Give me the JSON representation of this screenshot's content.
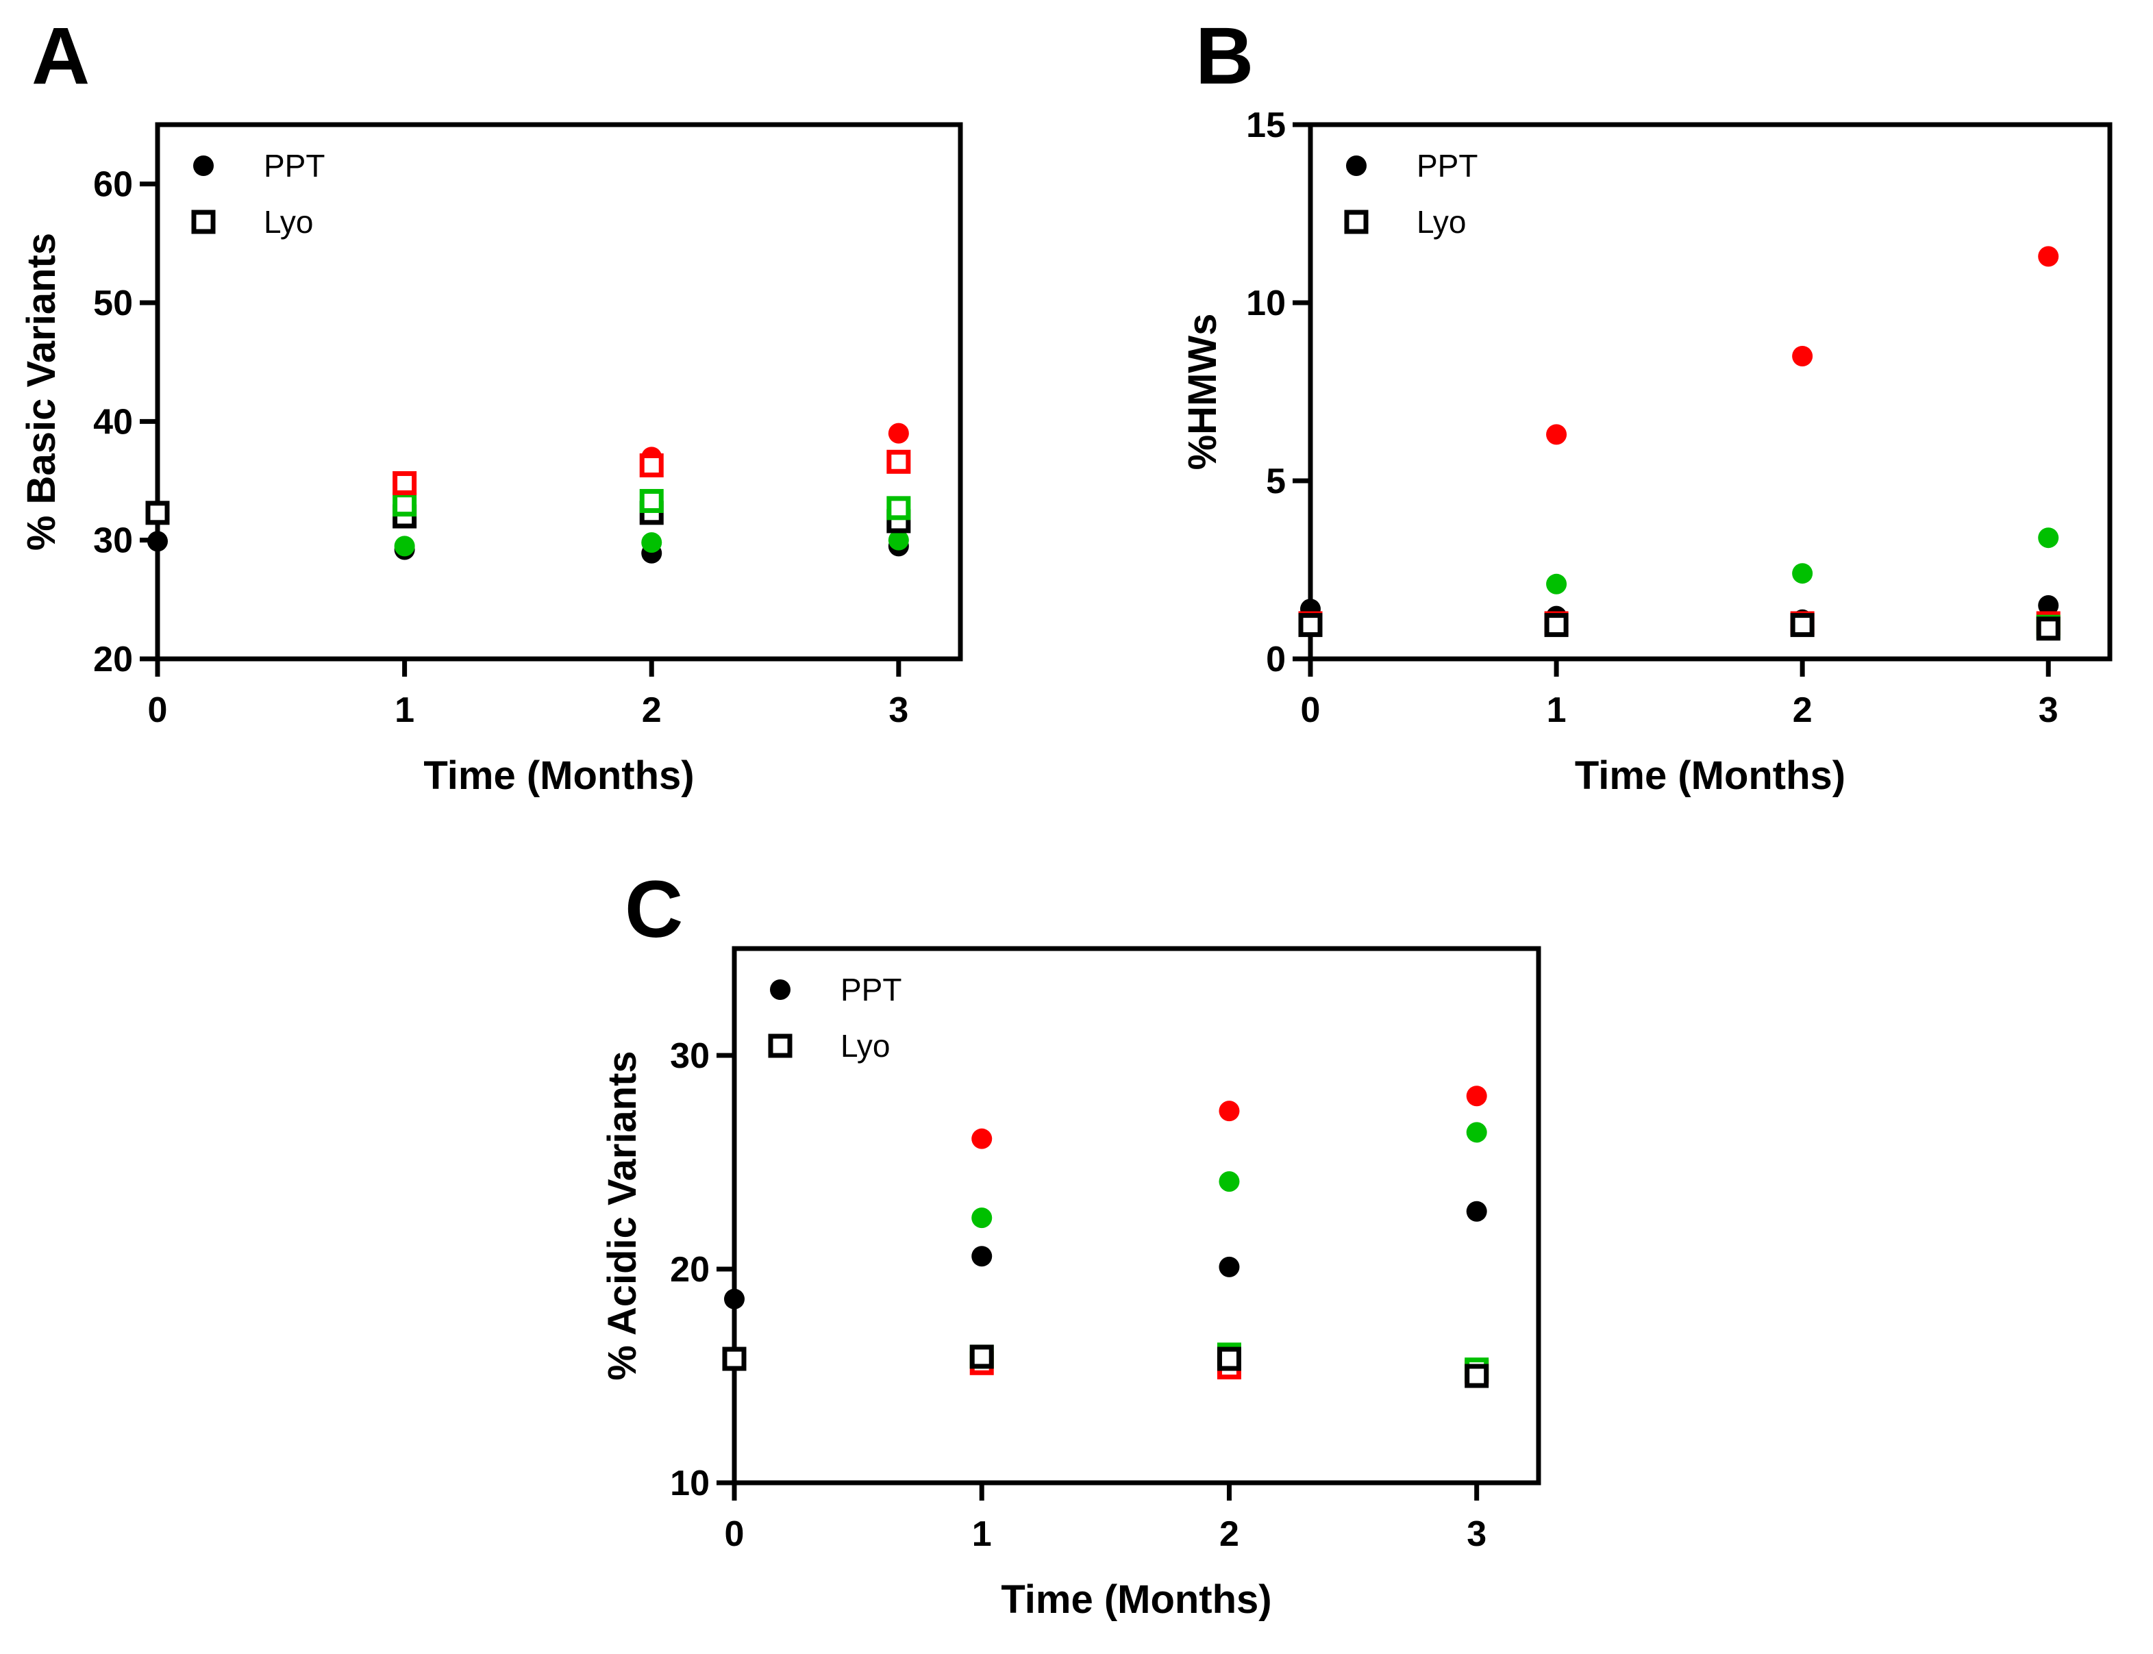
{
  "figure": {
    "colors": {
      "black": "#000000",
      "red": "#ff0000",
      "green": "#00c000"
    },
    "series_color_keys": [
      "black",
      "green",
      "red"
    ]
  },
  "chart_data": [
    {
      "id": "A",
      "panel_letter": "A",
      "type": "scatter",
      "xlabel": "Time (Months)",
      "ylabel": "% Basic Variants",
      "xlim": [
        0,
        3.25
      ],
      "ylim": [
        20,
        65
      ],
      "xticks": [
        "0",
        "1",
        "2",
        "3"
      ],
      "yticks": [
        "20",
        "30",
        "40",
        "50",
        "60"
      ],
      "legend": {
        "placement": "top-left",
        "entries": [
          {
            "marker": "circle",
            "label": "PPT"
          },
          {
            "marker": "square",
            "label": "Lyo"
          }
        ]
      },
      "series": [
        {
          "marker": "circle",
          "color": "black",
          "x": [
            0,
            1,
            2,
            3
          ],
          "y": [
            29.9,
            29.2,
            28.9,
            29.5
          ]
        },
        {
          "marker": "circle",
          "color": "green",
          "x": [
            1,
            2,
            3
          ],
          "y": [
            29.5,
            29.8,
            30.0
          ]
        },
        {
          "marker": "circle",
          "color": "red",
          "x": [
            1,
            2,
            3
          ],
          "y": [
            34.2,
            37.0,
            39.0
          ]
        },
        {
          "marker": "square",
          "color": "black",
          "x": [
            0,
            1,
            2,
            3
          ],
          "y": [
            32.3,
            32.0,
            32.3,
            31.6
          ]
        },
        {
          "marker": "square",
          "color": "green",
          "x": [
            1,
            2,
            3
          ],
          "y": [
            33.0,
            33.3,
            32.7
          ]
        },
        {
          "marker": "square",
          "color": "red",
          "x": [
            1,
            2,
            3
          ],
          "y": [
            34.8,
            36.3,
            36.6
          ]
        }
      ]
    },
    {
      "id": "B",
      "panel_letter": "B",
      "type": "scatter",
      "xlabel": "Time (Months)",
      "ylabel": "%HMWs",
      "xlim": [
        0,
        3.25
      ],
      "ylim": [
        0,
        15
      ],
      "xticks": [
        "0",
        "1",
        "2",
        "3"
      ],
      "yticks": [
        "0",
        "5",
        "10",
        "15"
      ],
      "legend": {
        "placement": "top-left",
        "entries": [
          {
            "marker": "circle",
            "label": "PPT"
          },
          {
            "marker": "square",
            "label": "Lyo"
          }
        ]
      },
      "series": [
        {
          "marker": "circle",
          "color": "black",
          "x": [
            0,
            1,
            2,
            3
          ],
          "y": [
            1.4,
            1.2,
            1.1,
            1.5
          ]
        },
        {
          "marker": "circle",
          "color": "green",
          "x": [
            1,
            2,
            3
          ],
          "y": [
            2.1,
            2.4,
            3.4
          ]
        },
        {
          "marker": "circle",
          "color": "red",
          "x": [
            1,
            2,
            3
          ],
          "y": [
            6.3,
            8.5,
            11.3
          ]
        },
        {
          "marker": "square",
          "color": "red",
          "x": [
            0,
            1,
            2,
            3
          ],
          "y": [
            1.0,
            1.0,
            1.0,
            1.0
          ]
        },
        {
          "marker": "square",
          "color": "green",
          "x": [
            3
          ],
          "y": [
            0.9
          ]
        },
        {
          "marker": "square",
          "color": "black",
          "x": [
            0,
            1,
            2,
            3
          ],
          "y": [
            0.95,
            0.95,
            0.95,
            0.85
          ]
        }
      ]
    },
    {
      "id": "C",
      "panel_letter": "C",
      "type": "scatter",
      "xlabel": "Time (Months)",
      "ylabel": "% Acidic Variants",
      "xlim": [
        0,
        3.25
      ],
      "ylim": [
        10,
        35
      ],
      "xticks": [
        "0",
        "1",
        "2",
        "3"
      ],
      "yticks": [
        "10",
        "20",
        "30"
      ],
      "legend": {
        "placement": "top-left",
        "entries": [
          {
            "marker": "circle",
            "label": "PPT"
          },
          {
            "marker": "square",
            "label": "Lyo"
          }
        ]
      },
      "series": [
        {
          "marker": "circle",
          "color": "black",
          "x": [
            0,
            1,
            2,
            3
          ],
          "y": [
            18.6,
            20.6,
            20.1,
            22.7
          ]
        },
        {
          "marker": "circle",
          "color": "green",
          "x": [
            1,
            2,
            3
          ],
          "y": [
            22.4,
            24.1,
            26.4
          ]
        },
        {
          "marker": "circle",
          "color": "red",
          "x": [
            1,
            2,
            3
          ],
          "y": [
            26.1,
            27.4,
            28.1
          ]
        },
        {
          "marker": "square",
          "color": "red",
          "x": [
            1,
            2,
            3
          ],
          "y": [
            15.6,
            15.4,
            15.2
          ]
        },
        {
          "marker": "square",
          "color": "green",
          "x": [
            1,
            2,
            3
          ],
          "y": [
            15.9,
            16.0,
            15.3
          ]
        },
        {
          "marker": "square",
          "color": "black",
          "x": [
            0,
            1,
            2,
            3
          ],
          "y": [
            15.8,
            15.9,
            15.8,
            15.0
          ]
        }
      ]
    }
  ]
}
